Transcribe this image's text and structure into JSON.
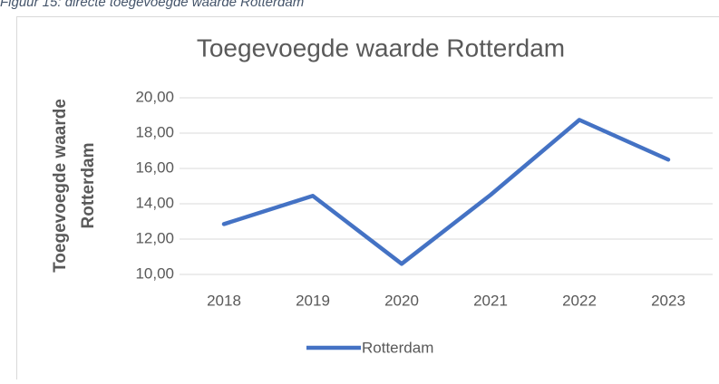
{
  "caption": "Figuur 15: directe toegevoegde waarde Rotterdam",
  "chart_data": {
    "type": "line",
    "title": "Toegevoegde waarde Rotterdam",
    "y_label_lines": [
      "Toegevoegde waarde",
      "Rotterdam"
    ],
    "categories": [
      "2018",
      "2019",
      "2020",
      "2021",
      "2022",
      "2023"
    ],
    "series": [
      {
        "name": "Rotterdam",
        "color": "#4472c4",
        "values": [
          12.85,
          14.45,
          10.6,
          14.5,
          18.75,
          16.5
        ]
      }
    ],
    "ylim": [
      10,
      20
    ],
    "yticks": [
      {
        "value": 10,
        "label": "10,00"
      },
      {
        "value": 12,
        "label": "12,00"
      },
      {
        "value": 14,
        "label": "14,00"
      },
      {
        "value": 16,
        "label": "16,00"
      },
      {
        "value": 18,
        "label": "18,00"
      },
      {
        "value": 20,
        "label": "20,00"
      }
    ],
    "grid": true,
    "legend": "bottom"
  }
}
